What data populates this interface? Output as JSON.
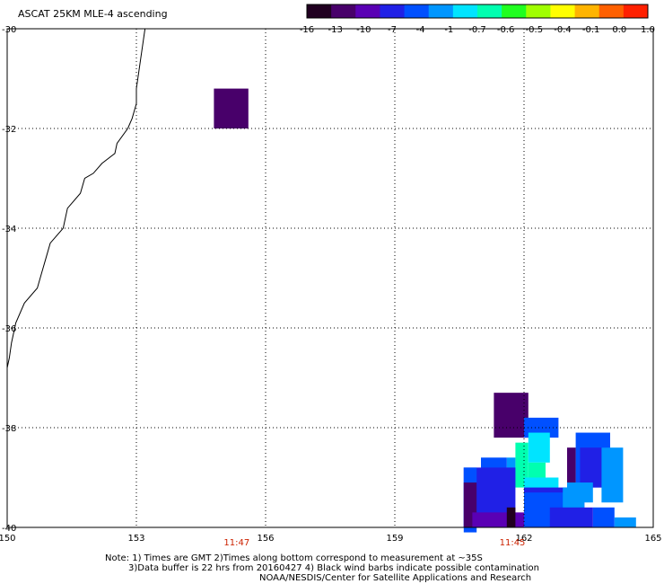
{
  "title": "ASCAT 25KM MLE-4 ascending",
  "colorbar": {
    "colors": [
      "#200020",
      "#48006a",
      "#5a00b4",
      "#2020e6",
      "#0050ff",
      "#0096ff",
      "#00e4ff",
      "#00ffb0",
      "#20ff20",
      "#a0ff00",
      "#ffff00",
      "#ffb400",
      "#ff6000",
      "#ff2000"
    ],
    "labels": [
      "-16",
      "-13",
      "-10",
      "-7",
      "-4",
      "-1",
      "-0.7",
      "-0.6",
      "-0.5",
      "-0.4",
      "-0.1",
      "0.0",
      "1.0"
    ]
  },
  "axes": {
    "lon_ticks": [
      "150",
      "153",
      "156",
      "159",
      "162",
      "165"
    ],
    "lat_ticks": [
      "-30",
      "-32",
      "-34",
      "-36",
      "-38",
      "-40"
    ],
    "lon_range": [
      150,
      165
    ],
    "lat_range": [
      -30,
      -40
    ]
  },
  "times": [
    {
      "text": "11:47",
      "lon": 155.3
    },
    {
      "text": "11:45",
      "lon": 161.7
    }
  ],
  "notes": [
    "Note: 1) Times are GMT 2)Times along bottom correspond to measurement at ~35S",
    "3)Data buffer is 22 hrs from 20160427 4) Black wind barbs indicate possible contamination",
    "NOAA/NESDIS/Center for Satellite Applications and Research"
  ],
  "cells": [
    {
      "lon": 154.8,
      "lat": -31.2,
      "w": 0.8,
      "h": 0.8,
      "c": "#48006a"
    },
    {
      "lon": 161.3,
      "lat": -37.3,
      "w": 0.8,
      "h": 0.9,
      "c": "#48006a"
    },
    {
      "lon": 162.0,
      "lat": -37.8,
      "w": 0.8,
      "h": 0.4,
      "c": "#0050ff"
    },
    {
      "lon": 161.8,
      "lat": -38.3,
      "w": 0.3,
      "h": 0.9,
      "c": "#00ffb0"
    },
    {
      "lon": 162.1,
      "lat": -38.1,
      "w": 0.5,
      "h": 0.6,
      "c": "#00e4ff"
    },
    {
      "lon": 162.1,
      "lat": -38.7,
      "w": 0.4,
      "h": 0.3,
      "c": "#00ffb0"
    },
    {
      "lon": 161.6,
      "lat": -38.6,
      "w": 0.2,
      "h": 0.6,
      "c": "#0096ff"
    },
    {
      "lon": 161.0,
      "lat": -38.6,
      "w": 0.6,
      "h": 0.3,
      "c": "#0050ff"
    },
    {
      "lon": 160.6,
      "lat": -38.8,
      "w": 1.2,
      "h": 1.2,
      "c": "#2020e6"
    },
    {
      "lon": 160.6,
      "lat": -38.8,
      "w": 0.3,
      "h": 1.3,
      "c": "#0050ff"
    },
    {
      "lon": 160.6,
      "lat": -39.1,
      "w": 0.3,
      "h": 0.9,
      "c": "#48006a"
    },
    {
      "lon": 160.8,
      "lat": -39.7,
      "w": 1.2,
      "h": 0.3,
      "c": "#5a00b4"
    },
    {
      "lon": 161.6,
      "lat": -39.6,
      "w": 0.2,
      "h": 0.4,
      "c": "#200020"
    },
    {
      "lon": 162.0,
      "lat": -39.0,
      "w": 0.8,
      "h": 0.3,
      "c": "#00e4ff"
    },
    {
      "lon": 162.0,
      "lat": -39.2,
      "w": 1.4,
      "h": 0.8,
      "c": "#2020e6"
    },
    {
      "lon": 162.0,
      "lat": -39.3,
      "w": 1.4,
      "h": 0.7,
      "c": "#0050ff"
    },
    {
      "lon": 162.9,
      "lat": -39.2,
      "w": 0.5,
      "h": 0.5,
      "c": "#0096ff"
    },
    {
      "lon": 163.2,
      "lat": -38.1,
      "w": 0.8,
      "h": 1.1,
      "c": "#0050ff"
    },
    {
      "lon": 163.0,
      "lat": -38.4,
      "w": 0.2,
      "h": 0.8,
      "c": "#48006a"
    },
    {
      "lon": 163.3,
      "lat": -38.4,
      "w": 0.6,
      "h": 0.8,
      "c": "#2020e6"
    },
    {
      "lon": 163.8,
      "lat": -38.4,
      "w": 0.5,
      "h": 1.1,
      "c": "#0096ff"
    },
    {
      "lon": 163.0,
      "lat": -39.1,
      "w": 0.6,
      "h": 0.4,
      "c": "#0096ff"
    },
    {
      "lon": 163.6,
      "lat": -39.6,
      "w": 0.5,
      "h": 0.4,
      "c": "#0050ff"
    },
    {
      "lon": 164.1,
      "lat": -39.8,
      "w": 0.5,
      "h": 0.2,
      "c": "#0096ff"
    },
    {
      "lon": 162.6,
      "lat": -39.6,
      "w": 1.0,
      "h": 0.4,
      "c": "#2020e6"
    }
  ]
}
